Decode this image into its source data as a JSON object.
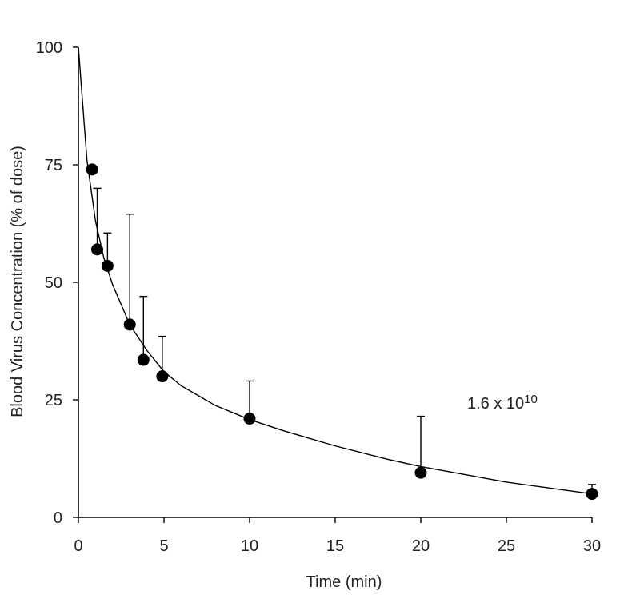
{
  "chart_data": {
    "type": "scatter",
    "title": "",
    "xlabel": "Time (min)",
    "ylabel": "Blood Virus Concentration (% of dose)",
    "xlim": [
      0,
      30
    ],
    "ylim": [
      0,
      100
    ],
    "x_ticks": [
      0,
      5,
      10,
      15,
      20,
      25,
      30
    ],
    "y_ticks": [
      0,
      25,
      50,
      75,
      100
    ],
    "grid": false,
    "legend": "none",
    "series": [
      {
        "x": [
          0.8,
          1.1,
          1.7,
          3.0,
          3.8,
          4.9,
          10,
          20,
          30
        ],
        "y": [
          74,
          57,
          53.5,
          41,
          33.5,
          30,
          21,
          9.5,
          5
        ],
        "error_upper": [
          74,
          70,
          60.5,
          64.5,
          47,
          38.5,
          29,
          21.5,
          7
        ]
      }
    ],
    "fit_curve": {
      "x": [
        0,
        0.5,
        1,
        1.5,
        2,
        3,
        4,
        5,
        6,
        8,
        10,
        12,
        15,
        18,
        20,
        25,
        30
      ],
      "y": [
        100,
        76,
        63,
        55,
        49.5,
        41,
        35.5,
        31,
        28,
        23.8,
        20.8,
        18.4,
        15.2,
        12.4,
        10.8,
        7.5,
        5
      ]
    },
    "annotation": {
      "base": "1.6 x 10",
      "exponent": "10"
    }
  }
}
